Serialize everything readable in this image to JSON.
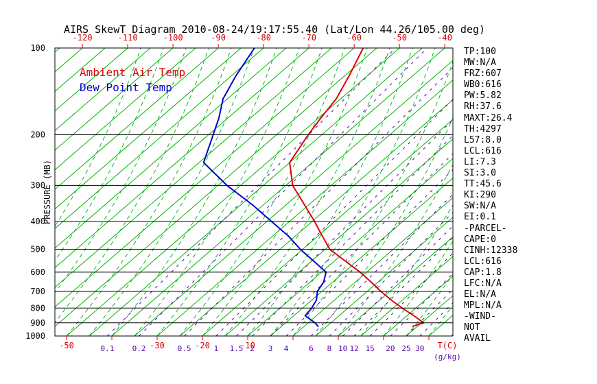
{
  "title": "AIRS SkewT Diagram 2010-08-24/19:17:55.40 (Lat/Lon 44.26/105.00 deg)",
  "legend": {
    "temp": "Ambient Air Temp",
    "dewpoint": "Dew Point Temp"
  },
  "colors": {
    "temp_curve": "#dd0000",
    "dewpoint_curve": "#0000cc",
    "isotherm": "#00b400",
    "moist_adiabat": "#00bb22",
    "mixing_ratio": "#5500aa",
    "axis": "#000000",
    "temp_tick_label": "#dd0000",
    "mixing_label": "#5500aa"
  },
  "chart_data": {
    "type": "line",
    "title": "AIRS SkewT Diagram 2010-08-24/19:17:55.40 (Lat/Lon 44.26/105.00 deg)",
    "projection": "skew-t log-p",
    "y_axis": {
      "label": "PRESSURE (MB)",
      "ticks_mb": [
        100,
        200,
        300,
        400,
        500,
        600,
        700,
        800,
        900,
        1000
      ],
      "scale": "log",
      "range_mb": [
        100,
        1000
      ]
    },
    "x_axis": {
      "unit_label": "T(C)",
      "top_ticks_degC": [
        -120,
        -110,
        -100,
        -90,
        -80,
        -70,
        -60,
        -50,
        -40
      ],
      "bottom_ticks_degC": [
        -50,
        -40,
        -30,
        -20,
        -10,
        0,
        10,
        20,
        30
      ],
      "bottom_tick_labels_shown": [
        -50,
        -30,
        -20,
        -10
      ]
    },
    "isotherms_degC": {
      "min": -130,
      "max": 45,
      "step": 5
    },
    "moist_adiabats_start_degC": {
      "min": -70,
      "max": 45,
      "step": 5
    },
    "mixing_ratio": {
      "unit_label": "(g/kg)",
      "values_g_per_kg": [
        0.1,
        0.2,
        0.5,
        1,
        1.5,
        2,
        3,
        4,
        6,
        8,
        10,
        12,
        15,
        20,
        25,
        30
      ],
      "anchor_dewpoint_degC_at_1000mb": [
        -41,
        -34,
        -24,
        -17,
        -12.5,
        -9,
        -5,
        -1.5,
        4,
        8,
        11,
        13.5,
        17,
        21.5,
        25,
        28
      ]
    },
    "series": [
      {
        "name": "Ambient Air Temp",
        "color": "#dd0000",
        "points_p_mb_t_degC": [
          [
            100,
            -58
          ],
          [
            125,
            -54
          ],
          [
            150,
            -51
          ],
          [
            175,
            -49.5
          ],
          [
            200,
            -48
          ],
          [
            250,
            -45
          ],
          [
            300,
            -38.5
          ],
          [
            350,
            -31
          ],
          [
            400,
            -24.5
          ],
          [
            450,
            -19
          ],
          [
            500,
            -14
          ],
          [
            550,
            -7.5
          ],
          [
            600,
            -1.5
          ],
          [
            650,
            3.5
          ],
          [
            700,
            8
          ],
          [
            750,
            12.5
          ],
          [
            800,
            17
          ],
          [
            850,
            21.5
          ],
          [
            900,
            25.5
          ],
          [
            925,
            24
          ]
        ]
      },
      {
        "name": "Dew Point Temp",
        "color": "#0000cc",
        "points_p_mb_t_degC": [
          [
            100,
            -82
          ],
          [
            125,
            -79
          ],
          [
            150,
            -76
          ],
          [
            175,
            -72
          ],
          [
            200,
            -69
          ],
          [
            250,
            -64
          ],
          [
            300,
            -53
          ],
          [
            350,
            -42.5
          ],
          [
            400,
            -34
          ],
          [
            450,
            -26.5
          ],
          [
            500,
            -20.5
          ],
          [
            550,
            -14.5
          ],
          [
            600,
            -9
          ],
          [
            650,
            -7
          ],
          [
            700,
            -6
          ],
          [
            750,
            -4
          ],
          [
            800,
            -3
          ],
          [
            850,
            -2.5
          ],
          [
            900,
            1.5
          ],
          [
            925,
            3
          ]
        ]
      }
    ]
  },
  "stats": [
    "TP:100",
    "MW:N/A",
    "FRZ:607",
    "WB0:616",
    "PW:5.82",
    "RH:37.6",
    "MAXT:26.4",
    "TH:4297",
    "L57:8.0",
    "LCL:616",
    "LI:7.3",
    "SI:3.0",
    "TT:45.6",
    "KI:290",
    "SW:N/A",
    "EI:0.1",
    "-PARCEL-",
    "CAPE:0",
    "CINH:12338",
    "LCL:616",
    "CAP:1.8",
    "LFC:N/A",
    "EL:N/A",
    "MPL:N/A",
    "-WIND-",
    "NOT",
    "AVAIL"
  ]
}
